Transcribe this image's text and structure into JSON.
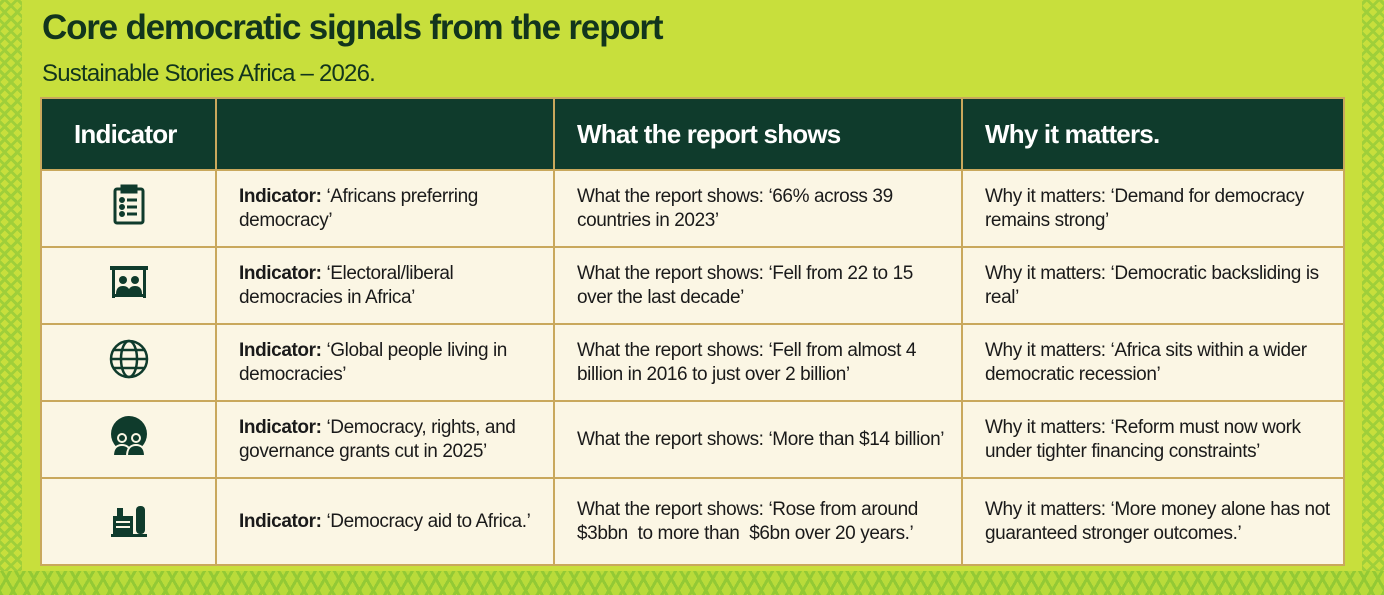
{
  "title": "Core democratic signals from the report",
  "subtitle": "Sustainable Stories Africa – 2026.",
  "headers": [
    "Indicator",
    "",
    "What the report shows",
    "Why it matters."
  ],
  "label_indicator": "Indicator:",
  "rows": [
    {
      "icon": "clipboard-list-icon",
      "indicator": "‘Africans preferring democracy’",
      "shows": "What the report shows: ‘66% across 39 countries in 2023’",
      "matters": "Why it matters: ‘Demand for democracy remains strong’"
    },
    {
      "icon": "voters-booth-icon",
      "indicator": "‘Electoral/liberal democracies in Africa’",
      "shows": "What the report shows: ‘Fell from 22 to 15 over the last decade’",
      "matters": "Why it matters: ‘Democratic backsliding is real’"
    },
    {
      "icon": "globe-icon",
      "indicator": "‘Global people living in democracies’",
      "shows": "What the report shows: ‘Fell from almost 4 billion in 2016 to just over 2 billion’",
      "matters": "Why it matters: ‘Africa sits within a wider democratic recession’"
    },
    {
      "icon": "people-globe-icon",
      "indicator": "‘Democracy, rights, and governance grants cut in 2025’",
      "shows": "What the report shows: ‘More than $14 billion’",
      "matters": "Why it matters: ‘Reform must now work under tighter financing constraints’"
    },
    {
      "icon": "building-aid-icon",
      "indicator": "‘Democracy aid to Africa.’",
      "shows": "What the report shows: ‘Rose from around $3bbn  to more than  $6bn over 20 years.’",
      "matters": "Why it matters: ‘More money alone has not guaranteed stronger outcomes.’"
    }
  ]
}
